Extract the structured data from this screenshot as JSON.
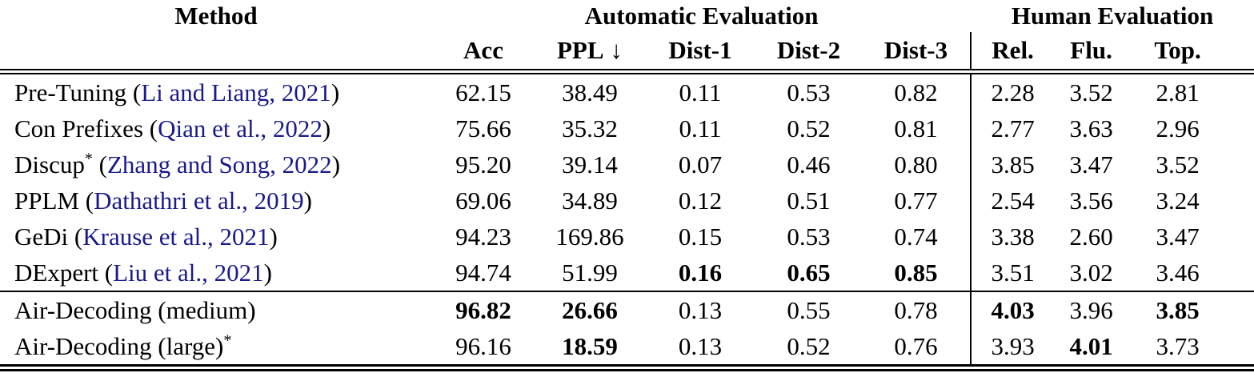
{
  "header": {
    "method": "Method",
    "groups": [
      {
        "label": "Automatic Evaluation"
      },
      {
        "label": "Human Evaluation"
      }
    ],
    "columns": [
      {
        "label": "Acc",
        "suffix": ""
      },
      {
        "label": "PPL",
        "suffix": "↓"
      },
      {
        "label": "Dist-1",
        "suffix": ""
      },
      {
        "label": "Dist-2",
        "suffix": ""
      },
      {
        "label": "Dist-3",
        "suffix": ""
      },
      {
        "label": "Rel.",
        "suffix": ""
      },
      {
        "label": "Flu.",
        "suffix": ""
      },
      {
        "label": "Top.",
        "suffix": ""
      }
    ]
  },
  "rows": [
    {
      "name": "Pre-Tuning",
      "sup": "",
      "cite": "Li and Liang, 2021",
      "values": [
        "62.15",
        "38.49",
        "0.11",
        "0.53",
        "0.82",
        "2.28",
        "3.52",
        "2.81"
      ],
      "bold": [
        false,
        false,
        false,
        false,
        false,
        false,
        false,
        false
      ],
      "rule_below": false
    },
    {
      "name": "Con Prefixes",
      "sup": "",
      "cite": "Qian et al., 2022",
      "values": [
        "75.66",
        "35.32",
        "0.11",
        "0.52",
        "0.81",
        "2.77",
        "3.63",
        "2.96"
      ],
      "bold": [
        false,
        false,
        false,
        false,
        false,
        false,
        false,
        false
      ],
      "rule_below": false
    },
    {
      "name": "Discup",
      "sup": "*",
      "cite": "Zhang and Song, 2022",
      "values": [
        "95.20",
        "39.14",
        "0.07",
        "0.46",
        "0.80",
        "3.85",
        "3.47",
        "3.52"
      ],
      "bold": [
        false,
        false,
        false,
        false,
        false,
        false,
        false,
        false
      ],
      "rule_below": false
    },
    {
      "name": "PPLM",
      "sup": "",
      "cite": "Dathathri et al., 2019",
      "values": [
        "69.06",
        "34.89",
        "0.12",
        "0.51",
        "0.77",
        "2.54",
        "3.56",
        "3.24"
      ],
      "bold": [
        false,
        false,
        false,
        false,
        false,
        false,
        false,
        false
      ],
      "rule_below": false
    },
    {
      "name": "GeDi",
      "sup": "",
      "cite": "Krause et al., 2021",
      "values": [
        "94.23",
        "169.86",
        "0.15",
        "0.53",
        "0.74",
        "3.38",
        "2.60",
        "3.47"
      ],
      "bold": [
        false,
        false,
        false,
        false,
        false,
        false,
        false,
        false
      ],
      "rule_below": false
    },
    {
      "name": "DExpert",
      "sup": "",
      "cite": "Liu et al., 2021",
      "values": [
        "94.74",
        "51.99",
        "0.16",
        "0.65",
        "0.85",
        "3.51",
        "3.02",
        "3.46"
      ],
      "bold": [
        false,
        false,
        true,
        true,
        true,
        false,
        false,
        false
      ],
      "rule_below": true
    },
    {
      "name": "Air-Decoding (medium)",
      "sup": "",
      "cite": "",
      "values": [
        "96.82",
        "26.66",
        "0.13",
        "0.55",
        "0.78",
        "4.03",
        "3.96",
        "3.85"
      ],
      "bold": [
        true,
        true,
        false,
        false,
        false,
        true,
        false,
        true
      ],
      "rule_below": false
    },
    {
      "name": "Air-Decoding (large)",
      "sup": "*",
      "cite": "",
      "values": [
        "96.16",
        "18.59",
        "0.13",
        "0.52",
        "0.76",
        "3.93",
        "4.01",
        "3.73"
      ],
      "bold": [
        false,
        true,
        false,
        false,
        false,
        false,
        true,
        false
      ],
      "rule_below": false
    }
  ],
  "colors": {
    "citation": "#1a1a8c",
    "rule": "#000000",
    "text": "#000000",
    "background": "#ffffff"
  }
}
